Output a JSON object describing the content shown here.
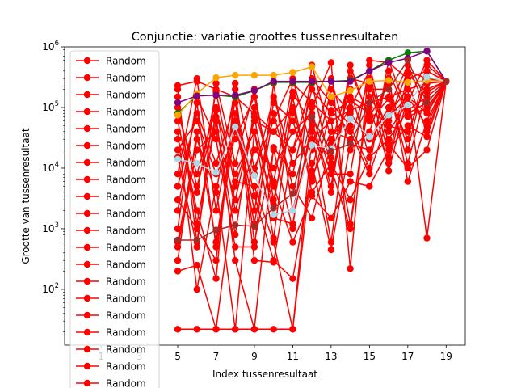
{
  "chart_data": {
    "type": "line",
    "title": "Conjunctie: variatie groottes tussenresultaten",
    "xlabel": "Index tussenresultaat",
    "ylabel": "Grootte van tussenresultaat",
    "x_scale": "linear",
    "y_scale": "log",
    "xlim": [
      -0.9,
      20.0
    ],
    "ylim": [
      12,
      1000000
    ],
    "x_ticks": [
      "1",
      "3",
      "5",
      "7",
      "9",
      "11",
      "13",
      "15",
      "17",
      "19"
    ],
    "y_ticks": [
      "10^2",
      "10^3",
      "10^4",
      "10^5",
      "10^6"
    ],
    "grid": false,
    "legend_position": "upper-left",
    "legend_entries": [
      "Random",
      "Random",
      "Random",
      "Random",
      "Random",
      "Random",
      "Random",
      "Random",
      "Random",
      "Random",
      "Random",
      "Random",
      "Random",
      "Random",
      "Random",
      "Random",
      "Random",
      "Random",
      "Random",
      "Random"
    ],
    "random_color": "#ff0000",
    "random_series": [
      {
        "x": [
          5,
          6,
          7,
          8,
          9,
          10,
          11,
          12,
          13,
          14,
          15,
          16,
          17,
          18,
          19
        ],
        "y": [
          22,
          22,
          22,
          22,
          22,
          22,
          22,
          30000,
          60000,
          90000,
          120000,
          150000,
          200000,
          250000,
          270000
        ]
      },
      {
        "x": [
          5,
          6,
          7,
          8,
          9,
          10,
          11,
          12,
          13,
          14,
          15,
          16,
          17,
          18,
          19
        ],
        "y": [
          200,
          250,
          22,
          6000,
          5000,
          600,
          22,
          12000,
          450,
          25000,
          20000,
          80000,
          200000,
          700,
          270000
        ]
      },
      {
        "x": [
          5,
          6,
          7,
          8,
          9,
          10,
          11,
          12,
          13,
          14,
          15,
          16,
          17,
          18,
          19
        ],
        "y": [
          230000,
          270000,
          200000,
          150000,
          80000,
          40000,
          20000,
          100000,
          550000,
          220,
          600000,
          550000,
          300000,
          400000,
          270000
        ]
      },
      {
        "x": [
          5,
          6,
          7,
          8,
          9,
          10,
          11,
          12,
          13,
          14,
          15,
          16,
          17,
          18,
          19
        ],
        "y": [
          40000,
          100,
          5000,
          22,
          40000,
          700,
          150000,
          4000,
          12000,
          3000,
          15000,
          30000,
          90000,
          150000,
          270000
        ]
      },
      {
        "x": [
          5,
          6,
          7,
          8,
          9,
          10,
          11,
          12,
          13,
          14,
          15,
          16,
          17,
          18,
          19
        ],
        "y": [
          3000,
          1000,
          300,
          150000,
          300,
          280,
          20000,
          250000,
          10000,
          1000,
          200000,
          200000,
          12000,
          200000,
          270000
        ]
      },
      {
        "x": [
          5,
          6,
          7,
          8,
          9,
          10,
          11,
          12,
          13,
          14,
          15,
          16,
          17,
          18,
          19
        ],
        "y": [
          20000,
          60000,
          8000,
          30000,
          150000,
          5000,
          600,
          3500,
          1500,
          6000,
          5000,
          20000,
          50000,
          33000,
          270000
        ]
      },
      {
        "x": [
          5,
          6,
          7,
          8,
          9,
          10,
          11,
          12,
          13,
          14,
          15,
          16,
          17,
          18,
          19
        ],
        "y": [
          100000,
          5000,
          70000,
          300,
          22,
          22000,
          8000,
          200000,
          80000,
          130000,
          80000,
          60000,
          400000,
          300000,
          270000
        ]
      },
      {
        "x": [
          5,
          6,
          7,
          8,
          9,
          10,
          11,
          12,
          13,
          14,
          15,
          16,
          17,
          18,
          19
        ],
        "y": [
          8000,
          300000,
          2000,
          80000,
          2000,
          120000,
          60000,
          7000,
          40000,
          30000,
          300000,
          9000,
          150000,
          80000,
          270000
        ]
      },
      {
        "x": [
          5,
          6,
          7,
          8,
          9,
          10,
          11,
          12,
          13,
          14,
          15,
          16,
          17,
          18,
          19
        ],
        "y": [
          500,
          20000,
          40000,
          3000,
          70000,
          1500,
          1200,
          60000,
          5000,
          500000,
          60000,
          140000,
          30000,
          500000,
          270000
        ]
      },
      {
        "x": [
          5,
          6,
          7,
          8,
          9,
          10,
          11,
          12,
          13,
          14,
          15,
          16,
          17,
          18,
          19
        ],
        "y": [
          60000,
          2000,
          150,
          250000,
          10000,
          60000,
          300000,
          20000,
          300000,
          20000,
          40000,
          300000,
          6000,
          60000,
          270000
        ]
      },
      {
        "x": [
          5,
          6,
          7,
          8,
          9,
          10,
          11,
          12,
          13,
          14,
          15,
          16,
          17,
          18,
          19
        ],
        "y": [
          1000,
          150000,
          30000,
          500,
          500,
          250000,
          2000,
          40000,
          600,
          150000,
          100000,
          12000,
          250000,
          40000,
          270000
        ]
      },
      {
        "x": [
          5,
          6,
          7,
          8,
          9,
          10,
          11,
          12,
          13,
          14,
          15,
          16,
          17,
          18,
          19
        ],
        "y": [
          15000,
          500,
          250000,
          12000,
          200000,
          3000,
          80000,
          300000,
          120000,
          50000,
          10000,
          600000,
          80000,
          120000,
          270000
        ]
      },
      {
        "x": [
          5,
          6,
          7,
          8,
          9,
          10,
          11,
          12,
          13,
          14,
          15,
          16,
          17,
          18,
          19
        ],
        "y": [
          300,
          40000,
          600,
          60000,
          1200,
          80000,
          5000,
          1500,
          25000,
          300000,
          250000,
          40000,
          120000,
          600000,
          270000
        ]
      },
      {
        "x": [
          5,
          6,
          7,
          8,
          9,
          10,
          11,
          12,
          13,
          14,
          15,
          16,
          17,
          18,
          19
        ],
        "y": [
          80000,
          8000,
          100000,
          2000,
          20000,
          10000,
          40000,
          80000,
          8000,
          8000,
          500000,
          25000,
          10000,
          20000,
          270000
        ]
      },
      {
        "x": [
          5,
          6,
          7,
          8,
          9,
          10,
          11,
          12,
          13,
          14,
          15,
          16,
          17,
          18,
          19
        ],
        "y": [
          5000,
          80000,
          12000,
          120000,
          3500,
          300,
          150,
          9000,
          200000,
          80000,
          30000,
          100000,
          500000,
          90000,
          270000
        ]
      },
      {
        "x": [
          5,
          6,
          7,
          8,
          9,
          10,
          11,
          12,
          13,
          14,
          15,
          16,
          17,
          18,
          19
        ],
        "y": [
          150000,
          1200,
          60000,
          800,
          100000,
          6000,
          250000,
          120000,
          60000,
          1200,
          150000,
          50000,
          40000,
          250000,
          270000
        ]
      },
      {
        "x": [
          5,
          6,
          7,
          8,
          9,
          10,
          11,
          12,
          13,
          14,
          15,
          16,
          17,
          18,
          19
        ],
        "y": [
          2000,
          120000,
          500,
          40000,
          8000,
          150000,
          12000,
          30000,
          15000,
          200000,
          15000,
          400000,
          70000,
          100000,
          270000
        ]
      },
      {
        "x": [
          5,
          6,
          7,
          8,
          9,
          10,
          11,
          12,
          13,
          14,
          15,
          16,
          17,
          18,
          19
        ],
        "y": [
          30000,
          4000,
          180000,
          5000,
          60000,
          40000,
          100000,
          6000,
          90000,
          40000,
          8000,
          70000,
          150000,
          50000,
          270000
        ]
      },
      {
        "x": [
          5,
          6,
          7,
          8,
          9,
          10,
          11,
          12,
          13,
          14,
          15,
          16,
          17,
          18,
          19
        ],
        "y": [
          600,
          30000,
          4000,
          200000,
          600,
          20000,
          1000,
          500000,
          30000,
          100000,
          400000,
          15000,
          350000,
          180000,
          270000
        ]
      },
      {
        "x": [
          5,
          6,
          7,
          8,
          9,
          10,
          11,
          12,
          13,
          14,
          15,
          16,
          17,
          18,
          19
        ],
        "y": [
          200000,
          600,
          90000,
          8000,
          40000,
          2500,
          180000,
          50000,
          4000,
          400000,
          70000,
          250000,
          20000,
          400000,
          270000
        ]
      }
    ],
    "highlight_series": [
      {
        "color": "#008000",
        "x": [
          5,
          6,
          7,
          8,
          9,
          10,
          11,
          12,
          13,
          14,
          15,
          16,
          17,
          18,
          19
        ],
        "y": [
          80000,
          160000,
          160000,
          150000,
          190000,
          260000,
          260000,
          260000,
          270000,
          280000,
          400000,
          600000,
          800000,
          850000,
          270000
        ]
      },
      {
        "color": "#ffa500",
        "x": [
          5,
          6,
          7,
          8,
          9,
          10,
          11,
          12,
          13,
          14,
          15,
          16,
          17,
          18,
          19
        ],
        "y": [
          75000,
          170000,
          310000,
          340000,
          340000,
          340000,
          380000,
          470000,
          150000,
          190000,
          270000,
          280000,
          260000,
          280000,
          270000
        ]
      },
      {
        "color": "#800080",
        "x": [
          5,
          6,
          7,
          8,
          9,
          10,
          11,
          12,
          13,
          14,
          15,
          16,
          17,
          18,
          19
        ],
        "y": [
          120000,
          155000,
          160000,
          160000,
          190000,
          270000,
          270000,
          270000,
          270000,
          270000,
          400000,
          550000,
          650000,
          850000,
          270000
        ]
      },
      {
        "color": "#add8e6",
        "x": [
          5,
          6,
          7,
          8,
          9,
          10,
          11,
          12,
          13,
          14,
          15,
          16,
          17,
          18,
          19
        ],
        "y": [
          14000,
          12000,
          8500,
          48000,
          7500,
          1700,
          2000,
          24000,
          21000,
          65000,
          33000,
          75000,
          110000,
          320000,
          270000
        ]
      },
      {
        "color": "#a52a2a",
        "x": [
          5,
          6,
          7,
          8,
          9,
          10,
          11,
          12,
          13,
          14,
          15,
          16,
          17,
          18,
          19
        ],
        "y": [
          650,
          650,
          950,
          1150,
          1100,
          2200,
          3800,
          70000,
          19000,
          25000,
          120000,
          200000,
          600000,
          120000,
          270000
        ]
      }
    ]
  }
}
